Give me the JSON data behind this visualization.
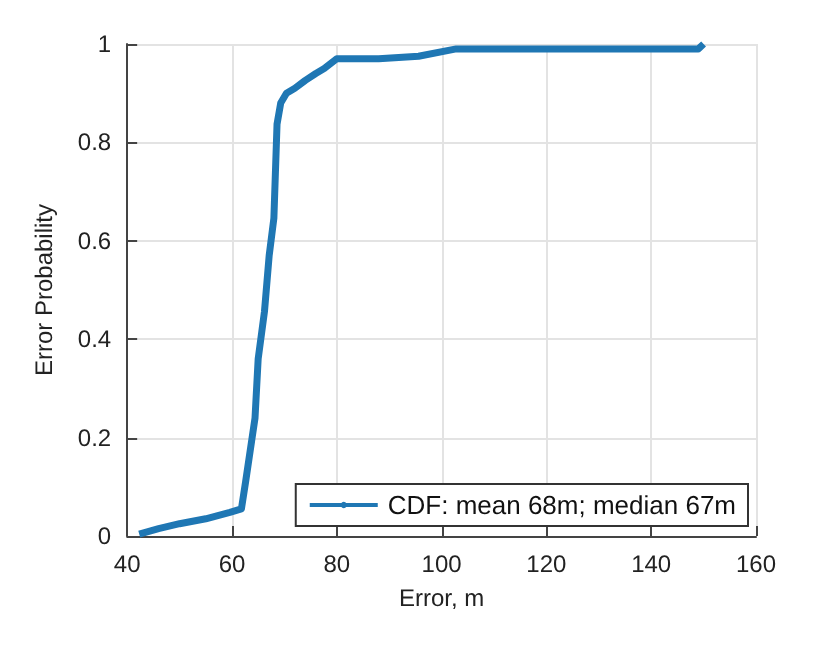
{
  "chart_data": {
    "type": "line",
    "xlabel": "Error, m",
    "ylabel": "Error Probability",
    "series": [
      {
        "name": "CDF: mean 68m; median 67m",
        "color": "#1f77b4",
        "x": [
          42.3,
          46,
          50,
          55,
          59.6,
          61.8,
          62.6,
          64.4,
          65.0,
          66.2,
          67.1,
          68.0,
          68.6,
          69.3,
          70.4,
          72,
          74.0,
          76,
          77.6,
          80,
          88,
          95.6,
          102.8,
          120,
          140,
          149,
          150
        ],
        "values": [
          0.004,
          0.015,
          0.025,
          0.035,
          0.048,
          0.055,
          0.11,
          0.24,
          0.36,
          0.456,
          0.57,
          0.646,
          0.837,
          0.88,
          0.9,
          0.91,
          0.926,
          0.94,
          0.95,
          0.97,
          0.97,
          0.975,
          0.99,
          0.99,
          0.99,
          0.99,
          1
        ]
      }
    ],
    "xlim": [
      40,
      160
    ],
    "xticks": [
      40,
      60,
      80,
      100,
      120,
      140,
      160
    ],
    "ylim": [
      0,
      1
    ],
    "yticks": [
      0,
      0.2,
      0.4,
      0.6,
      0.8,
      1
    ],
    "grid": true,
    "legend": "bottom right",
    "line_style": "solid",
    "marker": "none"
  }
}
